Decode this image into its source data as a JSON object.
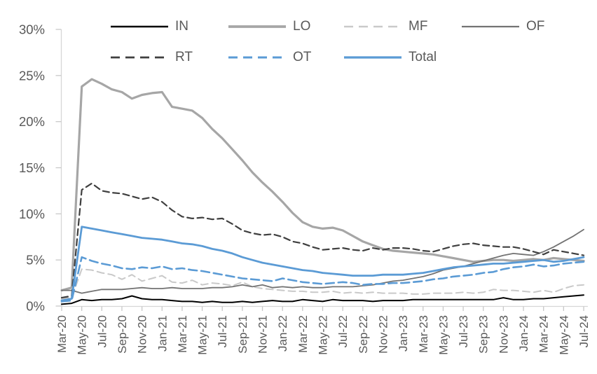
{
  "chart_data": {
    "type": "line",
    "title": "",
    "xlabel": "",
    "ylabel": "",
    "ylim": [
      0,
      30
    ],
    "y_tick_values": [
      0,
      5,
      10,
      15,
      20,
      25,
      30
    ],
    "y_tick_labels": [
      "0%",
      "5%",
      "10%",
      "15%",
      "20%",
      "25%",
      "30%"
    ],
    "grid": false,
    "legend_position": "top",
    "legend_rows": [
      [
        "IN",
        "LO",
        "MF",
        "OF"
      ],
      [
        "RT",
        "OT",
        "Total"
      ]
    ],
    "x": [
      "Mar-20",
      "Apr-20",
      "May-20",
      "Jun-20",
      "Jul-20",
      "Aug-20",
      "Sep-20",
      "Oct-20",
      "Nov-20",
      "Dec-20",
      "Jan-21",
      "Feb-21",
      "Mar-21",
      "Apr-21",
      "May-21",
      "Jun-21",
      "Jul-21",
      "Aug-21",
      "Sep-21",
      "Oct-21",
      "Nov-21",
      "Dec-21",
      "Jan-22",
      "Feb-22",
      "Mar-22",
      "Apr-22",
      "May-22",
      "Jun-22",
      "Jul-22",
      "Aug-22",
      "Sep-22",
      "Oct-22",
      "Nov-22",
      "Dec-22",
      "Jan-23",
      "Feb-23",
      "Mar-23",
      "Apr-23",
      "May-23",
      "Jun-23",
      "Jul-23",
      "Aug-23",
      "Sep-23",
      "Oct-23",
      "Nov-23",
      "Dec-23",
      "Jan-24",
      "Feb-24",
      "Mar-24",
      "Apr-24",
      "May-24",
      "Jun-24",
      "Jul-24"
    ],
    "x_tick_labels": [
      "Mar-20",
      "May-20",
      "Jul-20",
      "Sep-20",
      "Nov-20",
      "Jan-21",
      "Mar-21",
      "May-21",
      "Jul-21",
      "Sep-21",
      "Nov-21",
      "Jan-22",
      "Mar-22",
      "May-22",
      "Jul-22",
      "Sep-22",
      "Nov-22",
      "Jan-23",
      "Mar-23",
      "May-23",
      "Jul-23",
      "Sep-23",
      "Nov-23",
      "Jan-24",
      "Mar-24",
      "May-24",
      "Jul-24"
    ],
    "unit": "percent",
    "series": [
      {
        "name": "IN",
        "color": "#000000",
        "dash": "solid",
        "width": 2,
        "values": [
          0.2,
          0.3,
          0.7,
          0.6,
          0.7,
          0.7,
          0.8,
          1.1,
          0.8,
          0.7,
          0.7,
          0.6,
          0.5,
          0.5,
          0.4,
          0.5,
          0.4,
          0.4,
          0.5,
          0.4,
          0.5,
          0.6,
          0.5,
          0.5,
          0.7,
          0.6,
          0.5,
          0.7,
          0.6,
          0.6,
          0.6,
          0.5,
          0.6,
          0.6,
          0.6,
          0.7,
          0.7,
          0.7,
          0.7,
          0.7,
          0.7,
          0.7,
          0.7,
          0.7,
          0.9,
          0.7,
          0.7,
          0.8,
          0.8,
          0.9,
          1.0,
          1.1,
          1.2
        ]
      },
      {
        "name": "LO",
        "color": "#a6a6a6",
        "dash": "solid",
        "width": 3.2,
        "values": [
          1.7,
          2.0,
          23.8,
          24.6,
          24.1,
          23.5,
          23.2,
          22.5,
          22.9,
          23.1,
          23.2,
          21.6,
          21.4,
          21.2,
          20.4,
          19.2,
          18.2,
          17.0,
          15.8,
          14.5,
          13.4,
          12.4,
          11.3,
          10.1,
          9.1,
          8.6,
          8.4,
          8.5,
          8.2,
          7.6,
          7.0,
          6.6,
          6.2,
          6.0,
          5.9,
          5.8,
          5.7,
          5.6,
          5.4,
          5.2,
          5.0,
          4.8,
          4.9,
          5.0,
          5.0,
          4.9,
          5.0,
          5.1,
          5.0,
          5.2,
          5.1,
          5.0,
          4.9
        ]
      },
      {
        "name": "MF",
        "color": "#c9c9c9",
        "dash": "dashed",
        "width": 2,
        "values": [
          0.8,
          0.9,
          4.0,
          3.9,
          3.6,
          3.4,
          2.9,
          3.4,
          2.7,
          3.0,
          3.3,
          2.6,
          2.5,
          2.8,
          2.3,
          2.5,
          2.4,
          2.2,
          2.6,
          2.1,
          1.9,
          1.8,
          1.7,
          1.6,
          1.6,
          1.5,
          1.5,
          1.6,
          1.4,
          1.5,
          1.4,
          1.5,
          1.4,
          1.4,
          1.4,
          1.3,
          1.3,
          1.4,
          1.4,
          1.4,
          1.5,
          1.4,
          1.5,
          1.8,
          1.7,
          1.7,
          1.6,
          1.5,
          1.7,
          1.5,
          1.9,
          2.2,
          2.3
        ]
      },
      {
        "name": "OF",
        "color": "#737373",
        "dash": "solid",
        "width": 1.8,
        "values": [
          1.7,
          1.7,
          1.4,
          1.6,
          1.8,
          1.8,
          1.8,
          1.9,
          2.0,
          1.9,
          1.9,
          2.0,
          1.9,
          1.9,
          1.9,
          2.0,
          2.0,
          2.1,
          2.3,
          2.1,
          2.3,
          2.0,
          2.1,
          2.0,
          2.1,
          2.0,
          2.0,
          2.1,
          2.1,
          2.1,
          2.2,
          2.3,
          2.5,
          2.7,
          2.8,
          3.0,
          3.2,
          3.5,
          3.9,
          4.1,
          4.3,
          4.6,
          4.9,
          5.2,
          5.5,
          5.7,
          5.6,
          5.5,
          5.9,
          6.4,
          7.0,
          7.6,
          8.3
        ]
      },
      {
        "name": "RT",
        "color": "#3f3f3f",
        "dash": "dashed",
        "width": 2.2,
        "values": [
          0.9,
          1.1,
          12.6,
          13.3,
          12.5,
          12.3,
          12.2,
          11.9,
          11.6,
          11.8,
          11.3,
          10.4,
          9.7,
          9.5,
          9.6,
          9.4,
          9.5,
          8.9,
          8.2,
          7.9,
          7.7,
          7.8,
          7.5,
          7.0,
          6.8,
          6.4,
          6.1,
          6.2,
          6.3,
          6.1,
          6.0,
          6.3,
          6.1,
          6.3,
          6.3,
          6.2,
          6.0,
          5.9,
          6.2,
          6.5,
          6.7,
          6.8,
          6.6,
          6.5,
          6.4,
          6.4,
          6.2,
          5.9,
          5.6,
          6.1,
          5.9,
          5.7,
          5.5
        ]
      },
      {
        "name": "OT",
        "color": "#5b9bd5",
        "dash": "dashed",
        "width": 2.6,
        "values": [
          0.5,
          0.6,
          5.3,
          4.9,
          4.6,
          4.4,
          4.1,
          4.0,
          4.2,
          4.1,
          4.3,
          4.0,
          4.1,
          3.9,
          3.8,
          3.6,
          3.4,
          3.2,
          3.0,
          2.9,
          2.8,
          2.7,
          3.0,
          2.8,
          2.6,
          2.5,
          2.4,
          2.5,
          2.6,
          2.5,
          2.3,
          2.4,
          2.4,
          2.5,
          2.5,
          2.6,
          2.7,
          2.9,
          3.0,
          3.2,
          3.3,
          3.4,
          3.6,
          3.7,
          4.0,
          4.2,
          4.3,
          4.5,
          4.3,
          4.4,
          4.6,
          4.7,
          4.8
        ]
      },
      {
        "name": "Total",
        "color": "#5b9bd5",
        "dash": "solid",
        "width": 2.8,
        "values": [
          0.6,
          0.8,
          8.6,
          8.4,
          8.2,
          8.0,
          7.8,
          7.6,
          7.4,
          7.3,
          7.2,
          7.0,
          6.8,
          6.7,
          6.5,
          6.2,
          6.0,
          5.7,
          5.3,
          5.0,
          4.7,
          4.5,
          4.3,
          4.1,
          3.9,
          3.8,
          3.6,
          3.5,
          3.4,
          3.3,
          3.3,
          3.3,
          3.4,
          3.4,
          3.4,
          3.5,
          3.6,
          3.8,
          4.0,
          4.2,
          4.3,
          4.4,
          4.5,
          4.6,
          4.6,
          4.7,
          4.8,
          4.9,
          5.0,
          4.8,
          4.9,
          5.1,
          5.3
        ]
      }
    ],
    "style": {
      "axis_line_color": "#d6d6d6",
      "tick_color": "#c9c9c9",
      "label_color": "#595959",
      "background": "#ffffff"
    }
  }
}
